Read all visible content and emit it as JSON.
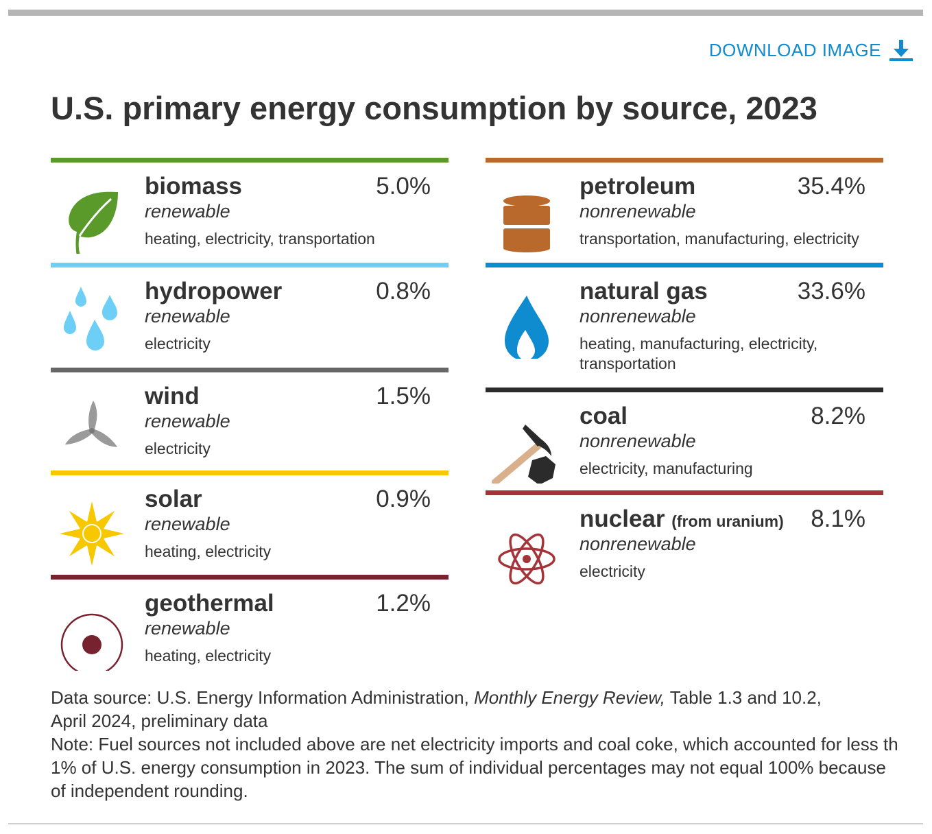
{
  "download_label": "DOWNLOAD IMAGE",
  "title": "U.S. primary energy consumption by source, 2023",
  "left": [
    {
      "name": "biomass",
      "qualifier": "",
      "percent": "5.0%",
      "kind": "renewable",
      "uses": "heating, electricity, transportation",
      "color": "#5a9a2a",
      "icon": "leaf-icon"
    },
    {
      "name": "hydropower",
      "qualifier": "",
      "percent": "0.8%",
      "kind": "renewable",
      "uses": "electricity",
      "color": "#6dcff6",
      "icon": "water-drops-icon"
    },
    {
      "name": "wind",
      "qualifier": "",
      "percent": "1.5%",
      "kind": "renewable",
      "uses": "electricity",
      "color": "#666666",
      "icon": "wind-turbine-icon"
    },
    {
      "name": "solar",
      "qualifier": "",
      "percent": "0.9%",
      "kind": "renewable",
      "uses": "heating, electricity",
      "color": "#f7c800",
      "icon": "sun-icon"
    },
    {
      "name": "geothermal",
      "qualifier": "",
      "percent": "1.2%",
      "kind": "renewable",
      "uses": "heating, electricity",
      "color": "#76232f",
      "icon": "geothermal-icon"
    }
  ],
  "right": [
    {
      "name": "petroleum",
      "qualifier": "",
      "percent": "35.4%",
      "kind": "nonrenewable",
      "uses": "transportation, manufacturing, electricity",
      "color": "#b9692b",
      "icon": "oil-barrel-icon"
    },
    {
      "name": "natural gas",
      "qualifier": "",
      "percent": "33.6%",
      "kind": "nonrenewable",
      "uses": "heating, manufacturing, electricity, transportation",
      "color": "#0f8bd0",
      "icon": "flame-icon"
    },
    {
      "name": "coal",
      "qualifier": "",
      "percent": "8.2%",
      "kind": "nonrenewable",
      "uses": "electricity, manufacturing",
      "color": "#2b2b2b",
      "icon": "pickaxe-coal-icon"
    },
    {
      "name": "nuclear",
      "qualifier": "(from uranium)",
      "percent": "8.1%",
      "kind": "nonrenewable",
      "uses": "electricity",
      "color": "#a4343a",
      "icon": "atom-icon"
    }
  ],
  "footer": {
    "source_prefix": "Data source: U.S. Energy Information Administration, ",
    "source_publication": "Monthly Energy Review,",
    "source_suffix": " Table 1.3 and 10.2,",
    "source_line2": "April 2024, preliminary data",
    "note_line1": "Note: Fuel sources not included above are net electricity imports and coal coke, which accounted for less th",
    "note_line2": "1% of U.S. energy consumption in 2023. The sum of individual percentages may not equal 100% because",
    "note_line3": "of independent rounding."
  }
}
